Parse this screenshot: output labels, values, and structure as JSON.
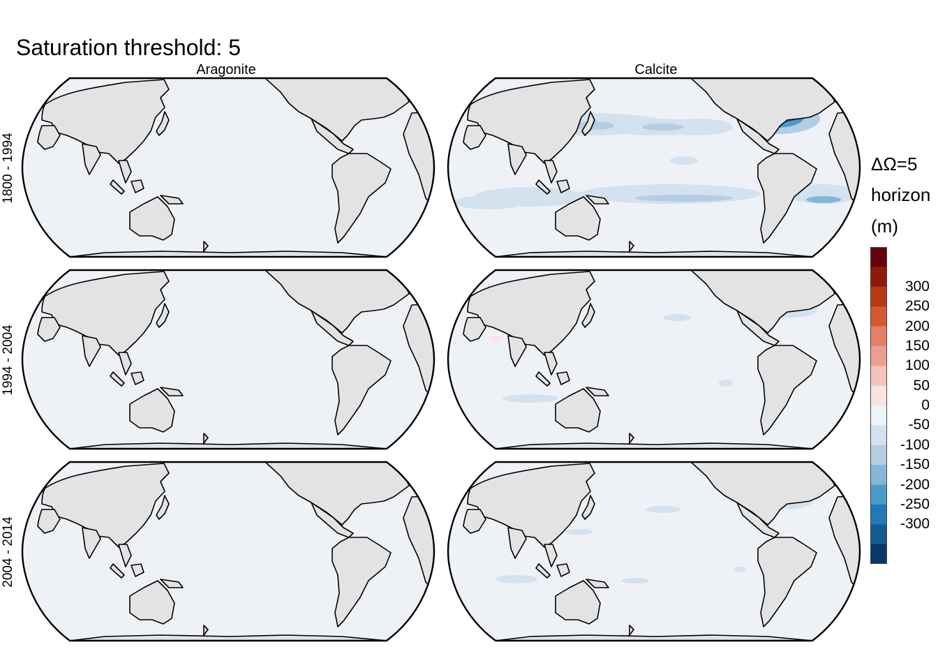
{
  "title": "Saturation threshold: 5",
  "columns": [
    "Aragonite",
    "Calcite"
  ],
  "rows": [
    "1800 - 1994",
    "1994 - 2004",
    "2004 - 2014"
  ],
  "legend": {
    "title_lines": [
      "ΔΩ=5",
      "horizon",
      "(m)"
    ],
    "ticks": [
      "300",
      "250",
      "200",
      "150",
      "100",
      "50",
      "0",
      "-50",
      "-100",
      "-150",
      "-200",
      "-250",
      "-300"
    ],
    "colors": [
      "#67000d",
      "#8e1a0a",
      "#b53a12",
      "#d35a2c",
      "#e48068",
      "#ed9e92",
      "#f4c3bd",
      "#f8e4e0",
      "#f0f3f6",
      "#d4e1ee",
      "#b3cde3",
      "#84b6d8",
      "#4b9bc9",
      "#1f7bb5",
      "#125b91",
      "#08376b"
    ]
  },
  "colors": {
    "ocean_zero": "#eef2f6",
    "land": "#e3e3e3",
    "coast": "#000000"
  }
}
